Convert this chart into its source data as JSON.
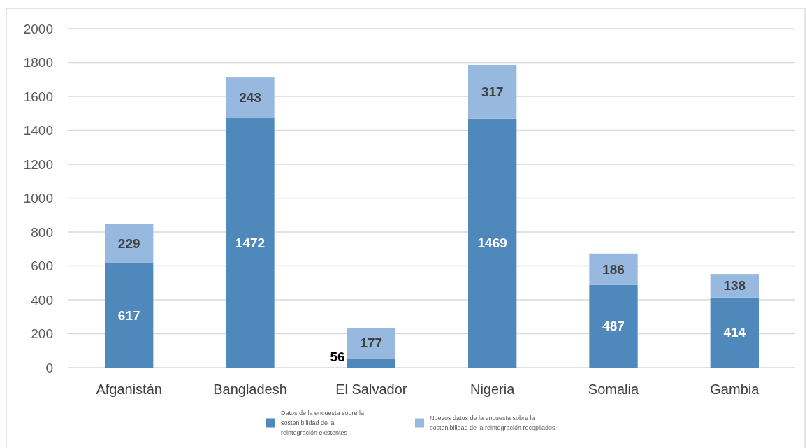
{
  "chart_data": {
    "type": "bar",
    "categories": [
      "Afganistán",
      "Bangladesh",
      "El Salvador",
      "Nigeria",
      "Somalia",
      "Gambia"
    ],
    "series": [
      {
        "name": "Datos de la encuesta sobre la sostenibilidad de la reintegración existentes",
        "color": "#4f88bb",
        "values": [
          617,
          1472,
          56,
          1469,
          487,
          414
        ]
      },
      {
        "name": "Nuevos datos de la encuesta sobre la sostenibilidad de la reintegración recopilados",
        "color": "#98b9df",
        "values": [
          229,
          243,
          177,
          317,
          186,
          138
        ]
      }
    ],
    "stacked": true,
    "ylim": [
      0,
      2000
    ],
    "yticks": [
      0,
      200,
      400,
      600,
      800,
      1000,
      1200,
      1400,
      1600,
      1800,
      2000
    ],
    "grid": "y",
    "legend": "bottom",
    "data_labels": true
  }
}
